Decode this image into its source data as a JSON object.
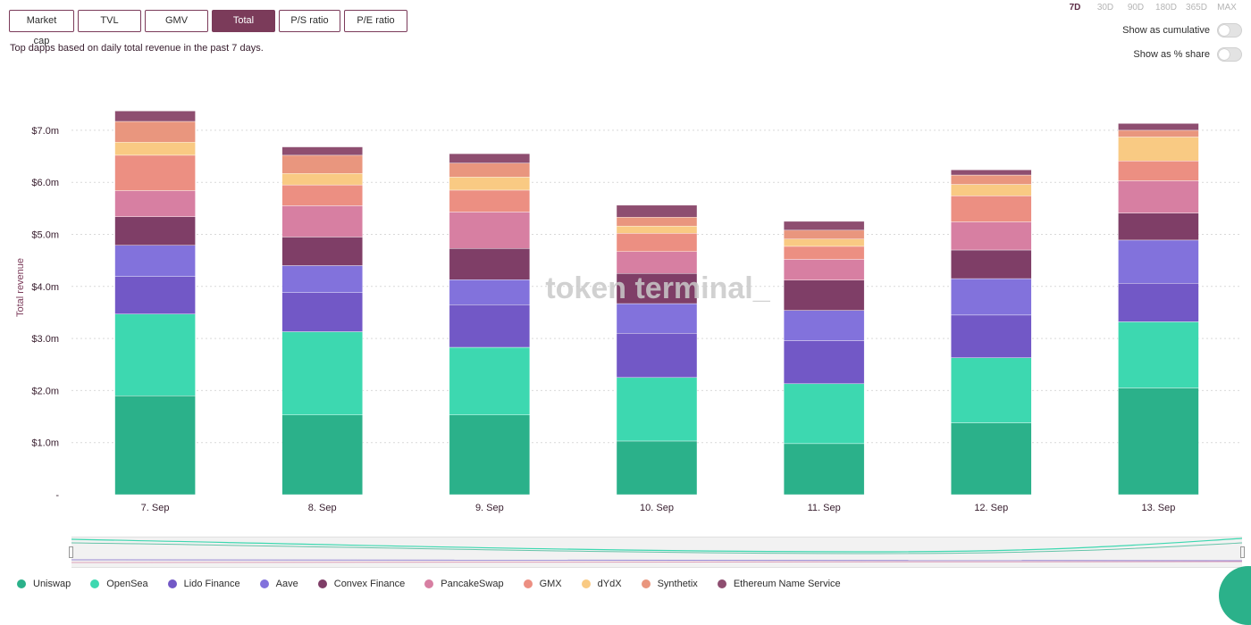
{
  "metric_tabs": [
    {
      "label": "Market cap",
      "active": false
    },
    {
      "label": "TVL",
      "active": false
    },
    {
      "label": "GMV",
      "active": false
    },
    {
      "label": "Total revenue",
      "active": true
    },
    {
      "label": "P/S ratio",
      "active": false
    },
    {
      "label": "P/E ratio",
      "active": false
    }
  ],
  "subtitle": "Top dapps based on daily total revenue in the past 7 days.",
  "range_tabs": [
    {
      "label": "7D",
      "active": true
    },
    {
      "label": "30D",
      "active": false
    },
    {
      "label": "90D",
      "active": false
    },
    {
      "label": "180D",
      "active": false
    },
    {
      "label": "365D",
      "active": false
    },
    {
      "label": "MAX",
      "active": false
    }
  ],
  "toggles": {
    "cumulative_label": "Show as cumulative",
    "share_label": "Show as % share"
  },
  "watermark": "token terminal_",
  "chart_data": {
    "type": "bar",
    "stacked": true,
    "categories": [
      "7. Sep",
      "8. Sep",
      "9. Sep",
      "10. Sep",
      "11. Sep",
      "12. Sep",
      "13. Sep"
    ],
    "ylabel": "Total revenue",
    "ylim": [
      0,
      7.5
    ],
    "yticks": [
      0,
      1,
      2,
      3,
      4,
      5,
      6,
      7
    ],
    "ytick_labels": [
      "-",
      "$1.0m",
      "$2.0m",
      "$3.0m",
      "$4.0m",
      "$5.0m",
      "$6.0m",
      "$7.0m"
    ],
    "grid": true,
    "legend_position": "bottom-left",
    "series": [
      {
        "name": "Uniswap",
        "color": "#2bb18a",
        "values": [
          1.9,
          1.53,
          1.53,
          1.03,
          0.98,
          1.38,
          2.05
        ]
      },
      {
        "name": "OpenSea",
        "color": "#3dd8b0",
        "values": [
          1.57,
          1.6,
          1.3,
          1.22,
          1.15,
          1.25,
          1.27
        ]
      },
      {
        "name": "Lido Finance",
        "color": "#7258c6",
        "values": [
          0.72,
          0.75,
          0.82,
          0.85,
          0.83,
          0.82,
          0.74
        ]
      },
      {
        "name": "Aave",
        "color": "#8272dc",
        "values": [
          0.6,
          0.52,
          0.48,
          0.57,
          0.58,
          0.7,
          0.83
        ]
      },
      {
        "name": "Convex Finance",
        "color": "#7f3e67",
        "values": [
          0.55,
          0.55,
          0.6,
          0.58,
          0.58,
          0.55,
          0.52
        ]
      },
      {
        "name": "PancakeSwap",
        "color": "#d77fa2",
        "values": [
          0.5,
          0.6,
          0.7,
          0.42,
          0.4,
          0.54,
          0.62
        ]
      },
      {
        "name": "GMX",
        "color": "#ec8f82",
        "values": [
          0.68,
          0.4,
          0.42,
          0.35,
          0.25,
          0.5,
          0.38
        ]
      },
      {
        "name": "dYdX",
        "color": "#f9ca83",
        "values": [
          0.25,
          0.22,
          0.25,
          0.14,
          0.14,
          0.22,
          0.46
        ]
      },
      {
        "name": "Synthetix",
        "color": "#e9967e",
        "values": [
          0.4,
          0.35,
          0.27,
          0.17,
          0.17,
          0.18,
          0.13
        ]
      },
      {
        "name": "Ethereum Name Service",
        "color": "#8e4e70",
        "values": [
          0.2,
          0.16,
          0.18,
          0.23,
          0.17,
          0.1,
          0.13
        ]
      }
    ]
  }
}
